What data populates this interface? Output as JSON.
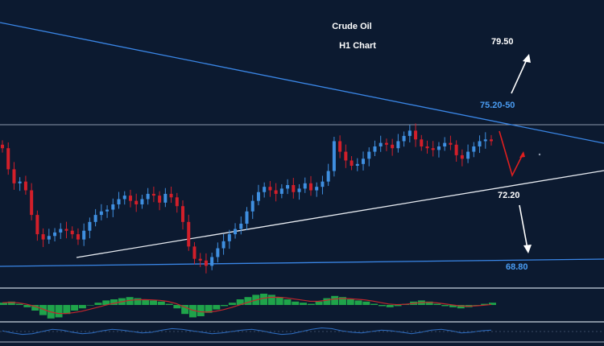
{
  "chart_data": {
    "type": "candlestick",
    "title": "Crude Oil",
    "subtitle": "H1 Chart",
    "colors": {
      "background": "#0c1a30",
      "up": "#3f8fe0",
      "down": "#d21f2a",
      "resistance_line": "#3a86e6",
      "support_line": "#e8ecf2",
      "base_line": "#3a86e6",
      "horizontal_level": "#8d98ab",
      "text": "#ffffff",
      "text_blue": "#4a9cf2",
      "arrow_up": "#ffffff",
      "arrow_down": "#ffffff",
      "projection": "#e01f1f",
      "macd_hist": "#1fa34a",
      "macd_signal": "#c2272d",
      "oscillator": "#2f6fc4"
    },
    "levels": [
      {
        "label": "79.50",
        "color": "#ffffff"
      },
      {
        "label": "75.20-50",
        "color": "#4a9cf2"
      },
      {
        "label": "72.20",
        "color": "#ffffff"
      },
      {
        "label": "68.80",
        "color": "#4a9cf2"
      }
    ],
    "price_series": [
      74.8,
      73.6,
      72.8,
      72.9,
      72.4,
      71.0,
      69.9,
      69.6,
      69.8,
      70.0,
      70.2,
      70.1,
      69.9,
      69.6,
      70.1,
      70.6,
      71.0,
      71.2,
      71.3,
      71.6,
      71.9,
      72.1,
      71.8,
      71.6,
      71.9,
      72.2,
      72.1,
      71.7,
      72.2,
      72.0,
      71.5,
      70.6,
      69.2,
      68.5,
      68.4,
      68.1,
      68.6,
      69.1,
      69.5,
      69.9,
      70.2,
      70.5,
      71.2,
      71.8,
      72.3,
      72.6,
      72.4,
      72.2,
      72.5,
      72.7,
      72.3,
      72.5,
      72.8,
      72.4,
      72.6,
      72.9,
      73.5,
      75.2,
      74.6,
      74.1,
      73.8,
      73.9,
      74.2,
      74.6,
      74.9,
      75.1,
      75.0,
      74.8,
      75.2,
      75.5,
      75.8,
      75.3,
      74.9,
      74.8,
      74.7,
      74.9,
      75.1,
      75.0,
      74.4,
      74.2,
      74.6,
      74.9,
      75.2,
      75.3,
      75.2
    ],
    "macd_hist": [
      0.2,
      0.3,
      0.1,
      -0.2,
      -0.5,
      -0.9,
      -1.2,
      -1.1,
      -0.8,
      -0.5,
      -0.3,
      0.0,
      0.2,
      0.4,
      0.5,
      0.6,
      0.7,
      0.6,
      0.5,
      0.4,
      0.3,
      0.1,
      -0.3,
      -0.8,
      -1.1,
      -1.0,
      -0.7,
      -0.4,
      -0.1,
      0.2,
      0.5,
      0.7,
      0.9,
      1.0,
      0.9,
      0.7,
      0.5,
      0.3,
      0.2,
      0.1,
      0.3,
      0.6,
      0.8,
      0.7,
      0.5,
      0.4,
      0.3,
      0.1,
      -0.1,
      -0.2,
      -0.1,
      0.1,
      0.3,
      0.4,
      0.3,
      0.1,
      -0.1,
      -0.2,
      -0.3,
      -0.2,
      0.0,
      0.1,
      0.2
    ],
    "oscillator": [
      0.1,
      -0.2,
      -0.4,
      -0.3,
      0.0,
      0.3,
      0.2,
      -0.1,
      -0.3,
      -0.2,
      0.1,
      0.3,
      0.2,
      0.0,
      -0.2,
      -0.1,
      0.2,
      0.4,
      0.3,
      0.1,
      -0.1,
      -0.3,
      -0.2,
      0.0,
      0.2,
      0.3,
      0.1,
      -0.2,
      -0.4,
      -0.3,
      0.0,
      0.3,
      0.5,
      0.4,
      0.1,
      -0.1,
      -0.2,
      0.0,
      0.2,
      0.1,
      -0.1,
      -0.3,
      -0.1,
      0.2,
      0.3,
      0.1,
      -0.2,
      -0.1,
      0.1,
      0.2
    ]
  }
}
